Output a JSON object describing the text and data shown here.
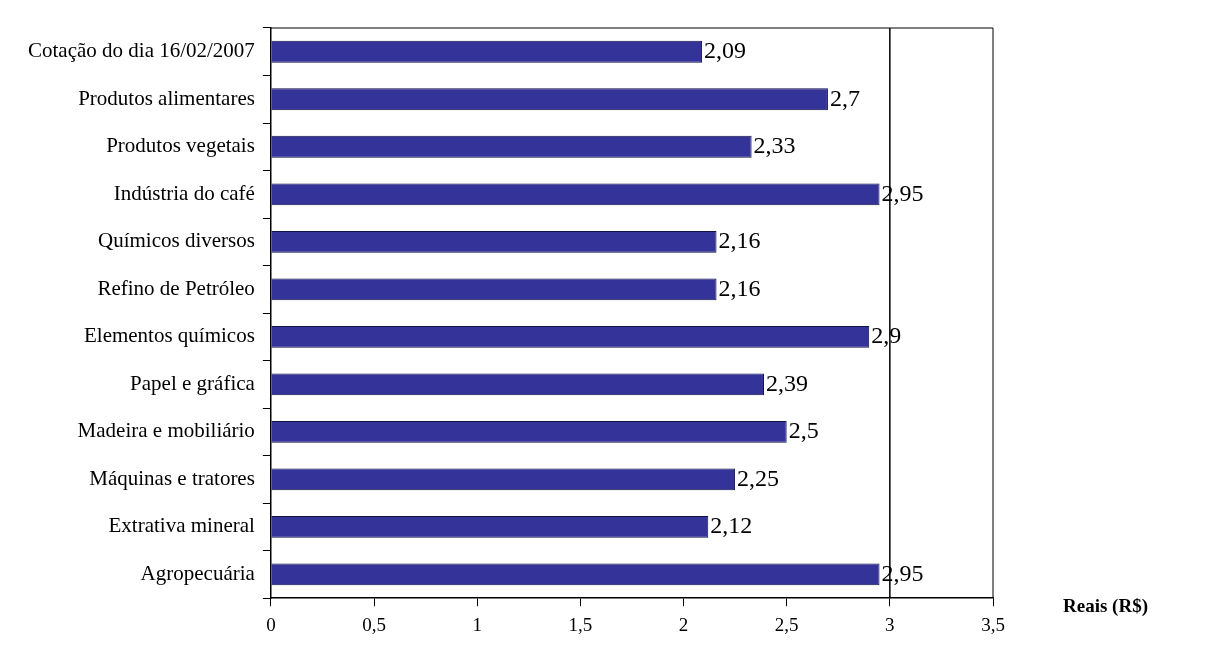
{
  "chart_data": {
    "type": "bar",
    "orientation": "horizontal",
    "xlabel": "Reais (R$)",
    "categories": [
      "Cotação do dia 16/02/2007",
      "Produtos alimentares",
      "Produtos vegetais",
      "Indústria do café",
      "Químicos diversos",
      "Refino de Petróleo",
      "Elementos químicos",
      "Papel e gráfica",
      "Madeira e mobiliário",
      "Máquinas e tratores",
      "Extrativa mineral",
      "Agropecuária"
    ],
    "values": [
      2.09,
      2.7,
      2.33,
      2.95,
      2.16,
      2.16,
      2.9,
      2.39,
      2.5,
      2.25,
      2.12,
      2.95
    ],
    "value_labels": [
      "2,09",
      "2,7",
      "2,33",
      "2,95",
      "2,16",
      "2,16",
      "2,9",
      "2,39",
      "2,5",
      "2,25",
      "2,12",
      "2,95"
    ],
    "color": "#333399",
    "xlim": [
      0,
      3.5
    ],
    "xticks": [
      0,
      {
        "value": 0.5,
        "label": "0,5"
      },
      1,
      {
        "value": 1.5,
        "label": "1,5"
      },
      2,
      {
        "value": 2.5,
        "label": "2,5"
      },
      3,
      {
        "value": 3.5,
        "label": "3,5"
      }
    ],
    "ref_lines": [
      {
        "axis": "x",
        "value": 3,
        "color": "#000000"
      }
    ],
    "grid": false,
    "legend": false
  }
}
